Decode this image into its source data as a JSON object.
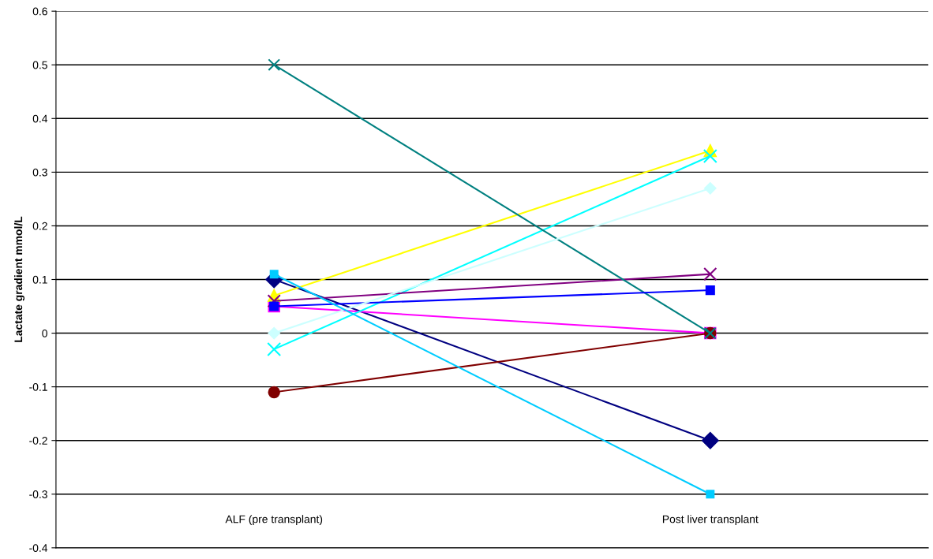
{
  "chart_data": {
    "type": "line",
    "ylabel": "Lactate gradient mmol/L",
    "categories": [
      "ALF (pre transplant)",
      "Post liver transplant"
    ],
    "series": [
      {
        "color": "#000080",
        "marker": "diamond",
        "values": [
          0.1,
          -0.2
        ]
      },
      {
        "color": "#ff00ff",
        "marker": "square",
        "values": [
          0.05,
          0.0
        ]
      },
      {
        "color": "#ffff00",
        "marker": "triangle",
        "values": [
          0.07,
          0.34
        ]
      },
      {
        "color": "#00ffff",
        "marker": "cross",
        "values": [
          -0.03,
          0.33
        ]
      },
      {
        "color": "#800080",
        "marker": "cross",
        "values": [
          0.06,
          0.11
        ]
      },
      {
        "color": "#800000",
        "marker": "circle",
        "values": [
          -0.11,
          0.0
        ]
      },
      {
        "color": "#008080",
        "marker": "cross",
        "values": [
          0.5,
          0.0
        ]
      },
      {
        "color": "#0000ff",
        "marker": "square",
        "values": [
          0.05,
          0.08
        ]
      },
      {
        "color": "#ccffff",
        "marker": "diamond",
        "values": [
          0.0,
          0.27
        ]
      },
      {
        "color": "#00ccff",
        "marker": "square",
        "values": [
          0.11,
          -0.3
        ]
      }
    ],
    "ylim": [
      -0.4,
      0.6
    ],
    "yticks": [
      0.6,
      0.5,
      0.4,
      0.3,
      0.2,
      0.1,
      0,
      -0.1,
      -0.2,
      -0.3,
      -0.4
    ],
    "grid": "y",
    "legend": false
  }
}
